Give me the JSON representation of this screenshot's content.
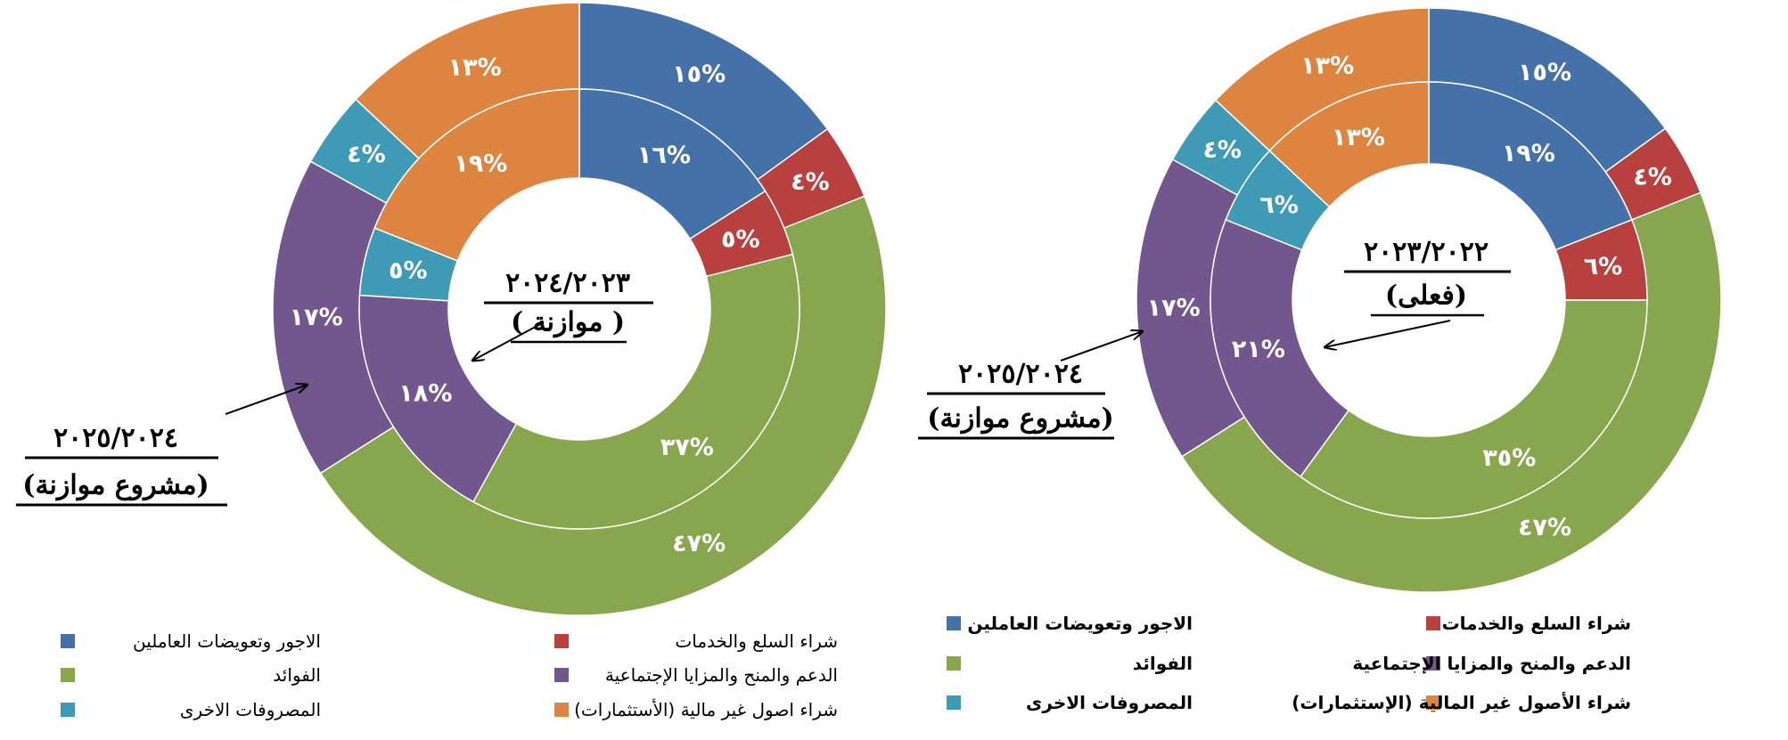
{
  "colors": {
    "wages": "#4472A8",
    "goods": "#B8403F",
    "interest": "#88A64D",
    "support": "#71578E",
    "other": "#3F9BB5",
    "assets": "#DC8440"
  },
  "chart_data": [
    {
      "type": "donut",
      "id": "left",
      "center_label": [
        "٢٠٢٤/٢٠٢٣",
        "( موازنة )"
      ],
      "outer_label": [
        "٢٠٢٥/٢٠٢٤",
        "(مشروع موازنة)"
      ],
      "categories": [
        "wages",
        "goods",
        "interest",
        "support",
        "other",
        "assets"
      ],
      "rings": [
        {
          "name": "٢٠٢٥/٢٠٢٤ مشروع موازنة",
          "values": [
            15,
            4,
            47,
            17,
            4,
            13
          ],
          "labels": [
            "١٥%",
            "٤%",
            "٤٧%",
            "١٧%",
            "٤%",
            "١٣%"
          ]
        },
        {
          "name": "٢٠٢٤/٢٠٢٣ موازنة",
          "values": [
            16,
            5,
            37,
            18,
            5,
            19
          ],
          "labels": [
            "١٦%",
            "٥%",
            "٣٧%",
            "١٨%",
            "٥%",
            "١٩%"
          ]
        }
      ],
      "legend": [
        {
          "key": "wages",
          "label": "الاجور وتعويضات العاملين"
        },
        {
          "key": "goods",
          "label": "شراء السلع والخدمات"
        },
        {
          "key": "interest",
          "label": "الفوائد"
        },
        {
          "key": "support",
          "label": "الدعم والمنح والمزايا الإجتماعية"
        },
        {
          "key": "other",
          "label": "المصروفات الاخرى"
        },
        {
          "key": "assets",
          "label": "شراء اصول غير مالية (الأستثمارات)"
        }
      ]
    },
    {
      "type": "donut",
      "id": "right",
      "center_label": [
        "٢٠٢٣/٢٠٢٢",
        "(فعلى)"
      ],
      "outer_label": [
        "٢٠٢٥/٢٠٢٤",
        "(مشروع موازنة)"
      ],
      "categories": [
        "wages",
        "goods",
        "interest",
        "support",
        "other",
        "assets"
      ],
      "rings": [
        {
          "name": "٢٠٢٥/٢٠٢٤ مشروع موازنة",
          "values": [
            15,
            4,
            47,
            17,
            4,
            13
          ],
          "labels": [
            "١٥%",
            "٤%",
            "٤٧%",
            "١٧%",
            "٤%",
            "١٣%"
          ]
        },
        {
          "name": "٢٠٢٣/٢٠٢٢ فعلى",
          "values": [
            19,
            6,
            35,
            21,
            6,
            13
          ],
          "labels": [
            "١٩%",
            "٦%",
            "٣٥%",
            "٢١%",
            "٦%",
            "١٣%"
          ]
        }
      ],
      "legend": [
        {
          "key": "wages",
          "label": "الاجور وتعويضات العاملين"
        },
        {
          "key": "goods",
          "label": "شراء السلع والخدمات"
        },
        {
          "key": "interest",
          "label": "الفوائد"
        },
        {
          "key": "support",
          "label": "الدعم والمنح والمزايا الإجتماعية"
        },
        {
          "key": "other",
          "label": "المصروفات الاخرى"
        },
        {
          "key": "assets",
          "label": "شراء الأصول غير المالية (الإستثمارات)"
        }
      ]
    }
  ]
}
